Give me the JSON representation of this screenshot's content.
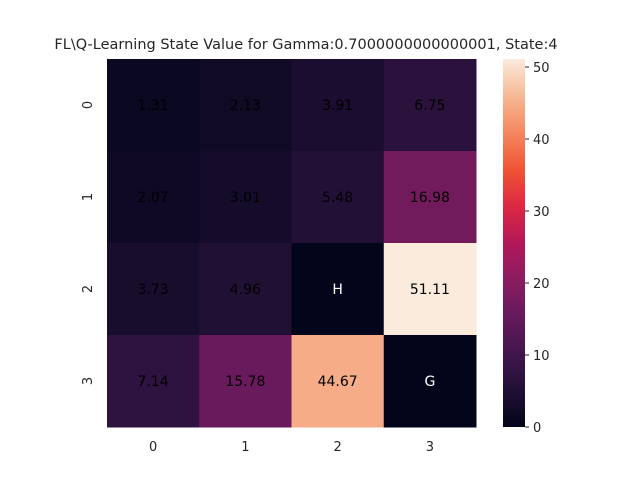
{
  "chart_data": {
    "type": "heatmap",
    "title": "FL\\Q-Learning State Value for Gamma:0.7000000000000001, State:4",
    "x_tick_labels": [
      "0",
      "1",
      "2",
      "3"
    ],
    "y_tick_labels": [
      "0",
      "1",
      "2",
      "3"
    ],
    "values": [
      [
        1.31,
        2.13,
        3.91,
        6.75
      ],
      [
        2.07,
        3.01,
        5.48,
        16.98
      ],
      [
        3.73,
        4.96,
        0,
        51.11
      ],
      [
        7.14,
        15.78,
        44.67,
        0
      ]
    ],
    "cell_labels": [
      [
        "1.31",
        "2.13",
        "3.91",
        "6.75"
      ],
      [
        "2.07",
        "3.01",
        "5.48",
        "16.98"
      ],
      [
        "3.73",
        "4.96",
        "H",
        "51.11"
      ],
      [
        "7.14",
        "15.78",
        "44.67",
        "G"
      ]
    ],
    "colormap": "rocket",
    "colorbar": {
      "range": [
        0,
        51.11
      ],
      "ticks": [
        0,
        10,
        20,
        30,
        40,
        50
      ],
      "tick_labels": [
        "0",
        "10",
        "20",
        "30",
        "40",
        "50"
      ]
    }
  }
}
